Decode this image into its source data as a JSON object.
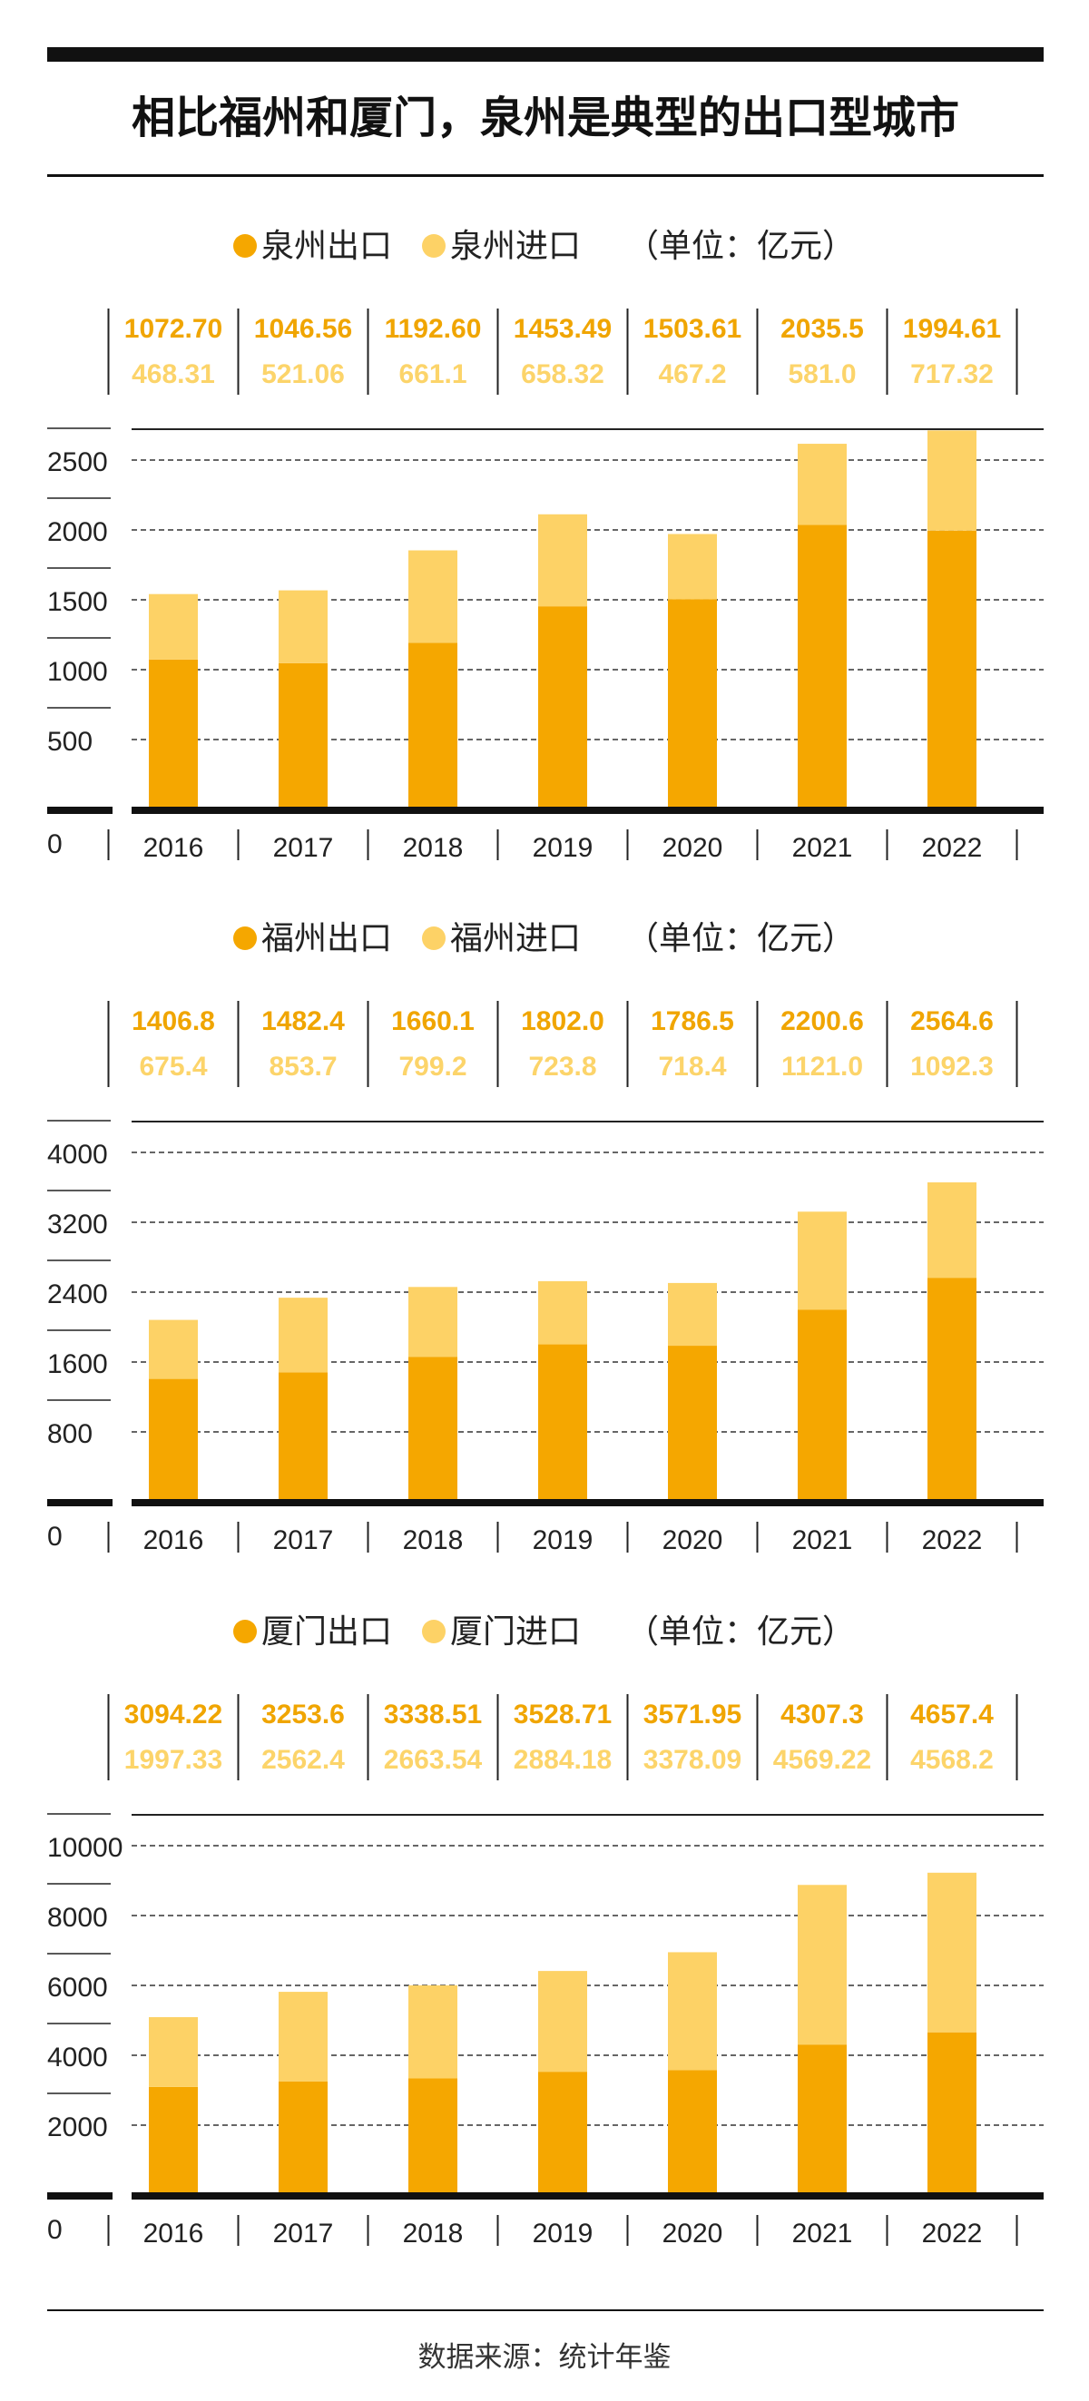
{
  "title": "相比福州和厦门，泉州是典型的出口型城市",
  "source": "数据来源：统计年鉴",
  "colors": {
    "export": "#f5a700",
    "import": "#fdd266",
    "axis": "#111111"
  },
  "chart_data": [
    {
      "type": "bar",
      "stacked": true,
      "legend_position": "top",
      "unit_label": "（单位：亿元）",
      "categories": [
        "2016",
        "2017",
        "2018",
        "2019",
        "2020",
        "2021",
        "2022"
      ],
      "series": [
        {
          "name": "泉州出口",
          "labels": [
            "1072.70",
            "1046.56",
            "1192.60",
            "1453.49",
            "1503.61",
            "2035.5",
            "1994.61"
          ],
          "values": [
            1072.7,
            1046.56,
            1192.6,
            1453.49,
            1503.61,
            2035.5,
            1994.61
          ]
        },
        {
          "name": "泉州进口",
          "labels": [
            "468.31",
            "521.06",
            "661.1",
            "658.32",
            "467.2",
            "581.0",
            "717.32"
          ],
          "values": [
            468.31,
            521.06,
            661.1,
            658.32,
            467.2,
            581.0,
            717.32
          ]
        }
      ],
      "yticks": [
        "0",
        "500",
        "1000",
        "1500",
        "2000",
        "2500"
      ],
      "ylim": [
        0,
        2500
      ],
      "grid": true
    },
    {
      "type": "bar",
      "stacked": true,
      "legend_position": "top",
      "unit_label": "（单位：亿元）",
      "categories": [
        "2016",
        "2017",
        "2018",
        "2019",
        "2020",
        "2021",
        "2022"
      ],
      "series": [
        {
          "name": "福州出口",
          "labels": [
            "1406.8",
            "1482.4",
            "1660.1",
            "1802.0",
            "1786.5",
            "2200.6",
            "2564.6"
          ],
          "values": [
            1406.8,
            1482.4,
            1660.1,
            1802.0,
            1786.5,
            2200.6,
            2564.6
          ]
        },
        {
          "name": "福州进口",
          "labels": [
            "675.4",
            "853.7",
            "799.2",
            "723.8",
            "718.4",
            "1121.0",
            "1092.3"
          ],
          "values": [
            675.4,
            853.7,
            799.2,
            723.8,
            718.4,
            1121.0,
            1092.3
          ]
        }
      ],
      "yticks": [
        "0",
        "800",
        "1600",
        "2400",
        "3200",
        "4000"
      ],
      "ylim": [
        0,
        4000
      ],
      "grid": true
    },
    {
      "type": "bar",
      "stacked": true,
      "legend_position": "top",
      "unit_label": "（单位：亿元）",
      "categories": [
        "2016",
        "2017",
        "2018",
        "2019",
        "2020",
        "2021",
        "2022"
      ],
      "series": [
        {
          "name": "厦门出口",
          "labels": [
            "3094.22",
            "3253.6",
            "3338.51",
            "3528.71",
            "3571.95",
            "4307.3",
            "4657.4"
          ],
          "values": [
            3094.22,
            3253.6,
            3338.51,
            3528.71,
            3571.95,
            4307.3,
            4657.4
          ]
        },
        {
          "name": "厦门进口",
          "labels": [
            "1997.33",
            "2562.4",
            "2663.54",
            "2884.18",
            "3378.09",
            "4569.22",
            "4568.2"
          ],
          "values": [
            1997.33,
            2562.4,
            2663.54,
            2884.18,
            3378.09,
            4569.22,
            4568.2
          ]
        }
      ],
      "yticks": [
        "0",
        "2000",
        "4000",
        "6000",
        "8000",
        "10000"
      ],
      "ylim": [
        0,
        10000
      ],
      "grid": true
    }
  ]
}
